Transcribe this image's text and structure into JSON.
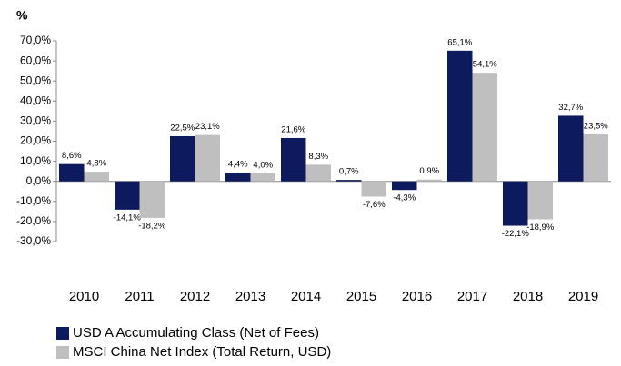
{
  "chart_data": {
    "type": "bar",
    "y_axis_label": "%",
    "categories": [
      "2010",
      "2011",
      "2012",
      "2013",
      "2014",
      "2015",
      "2016",
      "2017",
      "2018",
      "2019"
    ],
    "series": [
      {
        "name": "USD A Accumulating Class (Net of Fees)",
        "color": "#0d1b5e",
        "values": [
          8.6,
          -14.1,
          22.5,
          4.4,
          21.6,
          0.7,
          -4.3,
          65.1,
          -22.1,
          32.7
        ],
        "value_labels": [
          "8,6%",
          "-14,1%",
          "22,5%",
          "4,4%",
          "21,6%",
          "0,7%",
          "-4,3%",
          "65,1%",
          "-22,1%",
          "32,7%"
        ]
      },
      {
        "name": "MSCI China Net Index (Total Return, USD)",
        "color": "#bfbfbf",
        "values": [
          4.8,
          -18.2,
          23.1,
          4.0,
          8.3,
          -7.6,
          0.9,
          54.1,
          -18.9,
          23.5
        ],
        "value_labels": [
          "4,8%",
          "-18,2%",
          "23,1%",
          "4,0%",
          "8,3%",
          "-7,6%",
          "0,9%",
          "54,1%",
          "-18,9%",
          "23,5%"
        ]
      }
    ],
    "ylim": [
      -30,
      70
    ],
    "yticks": [
      {
        "value": -30,
        "label": "-30,0%"
      },
      {
        "value": -20,
        "label": "-20,0%"
      },
      {
        "value": -10,
        "label": "-10,0%"
      },
      {
        "value": 0,
        "label": "0,0%"
      },
      {
        "value": 10,
        "label": "10,0%"
      },
      {
        "value": 20,
        "label": "20,0%"
      },
      {
        "value": 30,
        "label": "30,0%"
      },
      {
        "value": 40,
        "label": "40,0%"
      },
      {
        "value": 50,
        "label": "50,0%"
      },
      {
        "value": 60,
        "label": "60,0%"
      },
      {
        "value": 70,
        "label": "70,0%"
      }
    ],
    "grid": false
  }
}
